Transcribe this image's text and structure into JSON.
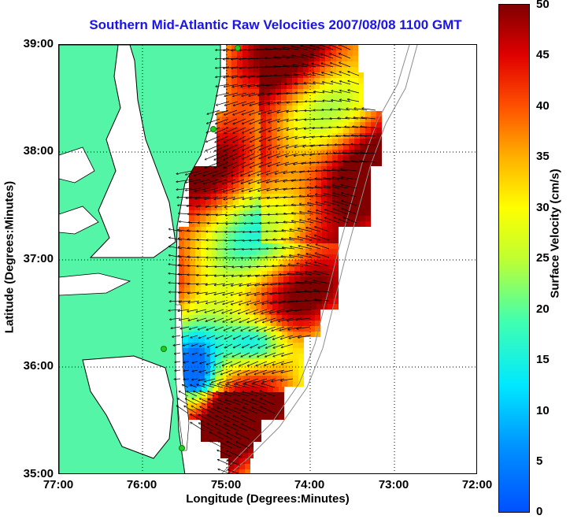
{
  "title": "Southern Mid-Atlantic Raw Velocities 2007/08/08 1100 GMT",
  "x_axis": {
    "label": "Longitude (Degrees:Minutes)",
    "ticks": [
      "77:00",
      "76:00",
      "75:00",
      "74:00",
      "73:00",
      "72:00"
    ]
  },
  "y_axis": {
    "label": "Latitude (Degrees:Minutes)",
    "ticks": [
      "39:00",
      "38:00",
      "37:00",
      "36:00",
      "35:00"
    ]
  },
  "colorbar": {
    "label": "Surface Velocity (cm/s)",
    "ticks": [
      "50",
      "45",
      "40",
      "35",
      "30",
      "25",
      "20",
      "15",
      "10",
      "5",
      "0"
    ],
    "range": [
      0,
      50
    ],
    "colormap": "jet"
  },
  "chart_data": {
    "type": "heatmap",
    "title": "Southern Mid-Atlantic Raw Velocities 2007/08/08 1100 GMT",
    "xlabel": "Longitude (Degrees:Minutes)",
    "ylabel": "Latitude (Degrees:Minutes)",
    "xlim": [
      -77.0,
      -72.0
    ],
    "ylim": [
      35.0,
      39.0
    ],
    "grid": true,
    "value_unit": "cm/s",
    "value_range": [
      0,
      50
    ],
    "overlay": "velocity vectors (arrows)",
    "land_color": "#55f5a8",
    "features": [
      "coastline",
      "Chesapeake Bay",
      "bathymetry contours",
      "HF radar sites (green dots)"
    ]
  }
}
